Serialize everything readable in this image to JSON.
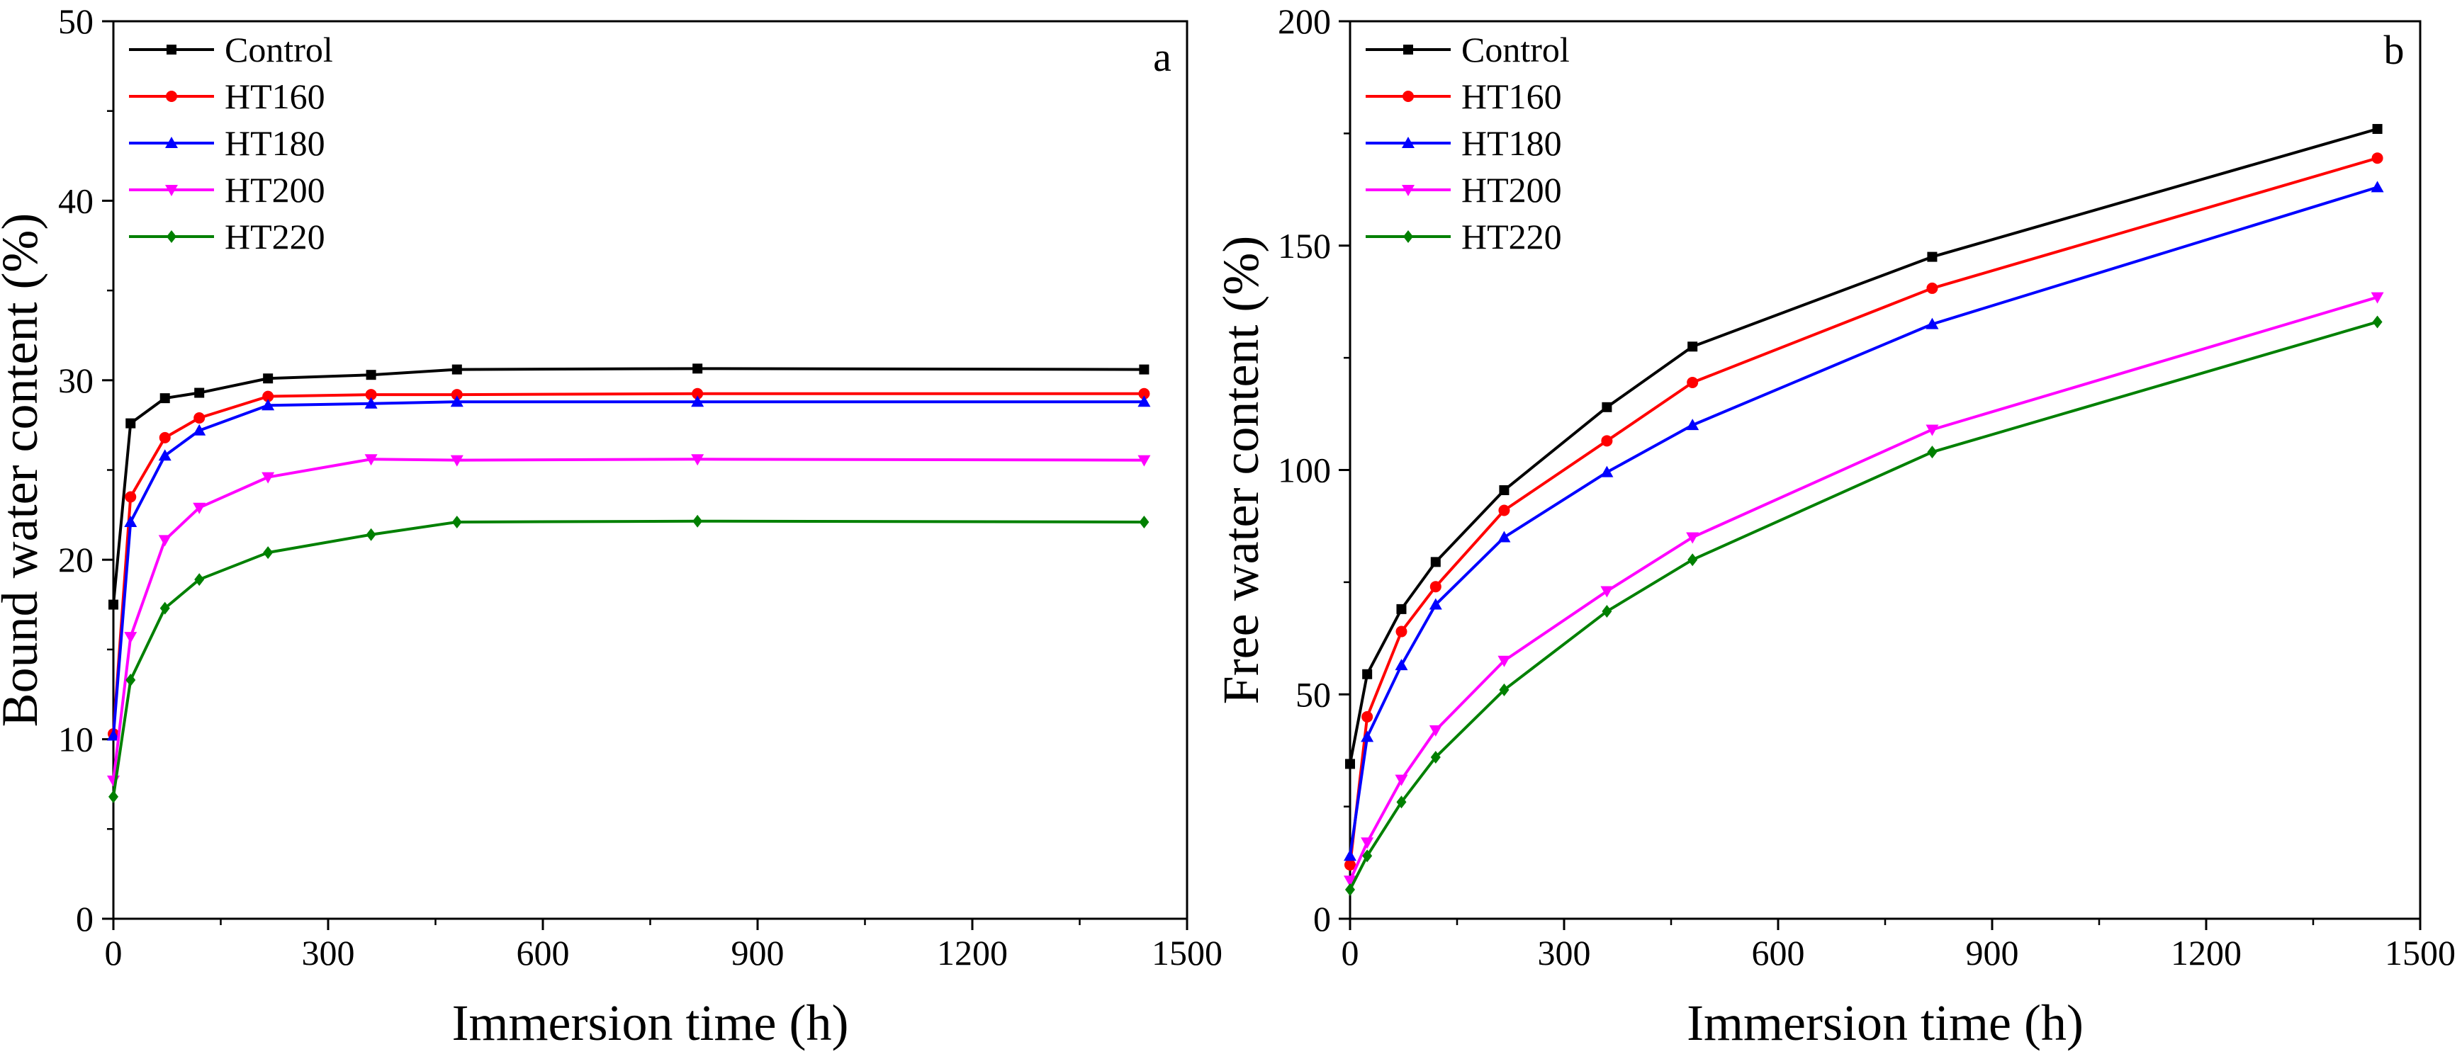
{
  "chart_data": [
    {
      "type": "line",
      "panel_label": "a",
      "xlabel": "Immersion time (h)",
      "ylabel": "Bound water content (%)",
      "xlim": [
        0,
        1500
      ],
      "ylim": [
        0,
        50
      ],
      "xticks": [
        0,
        300,
        600,
        900,
        1200,
        1500
      ],
      "yticks": [
        0,
        10,
        20,
        30,
        40,
        50
      ],
      "x": [
        0,
        24,
        72,
        120,
        216,
        360,
        480,
        816,
        1440
      ],
      "grid": false,
      "legend_position": "top-left",
      "series": [
        {
          "name": "Control",
          "color": "#000000",
          "marker": "square",
          "values": [
            17.5,
            27.6,
            29.0,
            29.3,
            30.1,
            30.3,
            30.6,
            30.65,
            30.6
          ]
        },
        {
          "name": "HT160",
          "color": "#ff0000",
          "marker": "circle",
          "values": [
            10.3,
            23.5,
            26.8,
            27.9,
            29.1,
            29.2,
            29.2,
            29.25,
            29.25
          ]
        },
        {
          "name": "HT180",
          "color": "#0000ff",
          "marker": "triangle-up",
          "values": [
            10.2,
            22.1,
            25.8,
            27.2,
            28.6,
            28.7,
            28.8,
            28.8,
            28.8
          ]
        },
        {
          "name": "HT200",
          "color": "#ff00ff",
          "marker": "triangle-down",
          "values": [
            7.7,
            15.7,
            21.1,
            22.9,
            24.6,
            25.6,
            25.55,
            25.6,
            25.55
          ]
        },
        {
          "name": "HT220",
          "color": "#008000",
          "marker": "diamond",
          "values": [
            6.8,
            13.3,
            17.3,
            18.9,
            20.4,
            21.4,
            22.1,
            22.15,
            22.1
          ]
        }
      ]
    },
    {
      "type": "line",
      "panel_label": "b",
      "xlabel": "Immersion time (h)",
      "ylabel": "Free water content (%)",
      "xlim": [
        0,
        1500
      ],
      "ylim": [
        0,
        200
      ],
      "xticks": [
        0,
        300,
        600,
        900,
        1200,
        1500
      ],
      "yticks": [
        0,
        50,
        100,
        150,
        200
      ],
      "x": [
        0,
        24,
        72,
        120,
        216,
        360,
        480,
        816,
        1440
      ],
      "grid": false,
      "legend_position": "top-left",
      "series": [
        {
          "name": "Control",
          "color": "#000000",
          "marker": "square",
          "values": [
            34.5,
            54.5,
            69.0,
            79.5,
            95.5,
            114.0,
            127.5,
            147.5,
            176.0
          ]
        },
        {
          "name": "HT160",
          "color": "#ff0000",
          "marker": "circle",
          "values": [
            12.0,
            45.0,
            64.0,
            74.0,
            91.0,
            106.5,
            119.5,
            140.5,
            169.5
          ]
        },
        {
          "name": "HT180",
          "color": "#0000ff",
          "marker": "triangle-up",
          "values": [
            14.0,
            40.5,
            56.5,
            70.0,
            85.0,
            99.5,
            110.0,
            132.5,
            163.0
          ]
        },
        {
          "name": "HT200",
          "color": "#ff00ff",
          "marker": "triangle-down",
          "values": [
            8.5,
            17.0,
            31.0,
            42.0,
            57.5,
            73.0,
            85.0,
            109.0,
            138.5
          ]
        },
        {
          "name": "HT220",
          "color": "#008000",
          "marker": "diamond",
          "values": [
            6.5,
            14.0,
            26.0,
            36.0,
            51.0,
            68.5,
            80.0,
            104.0,
            133.0
          ]
        }
      ]
    }
  ]
}
